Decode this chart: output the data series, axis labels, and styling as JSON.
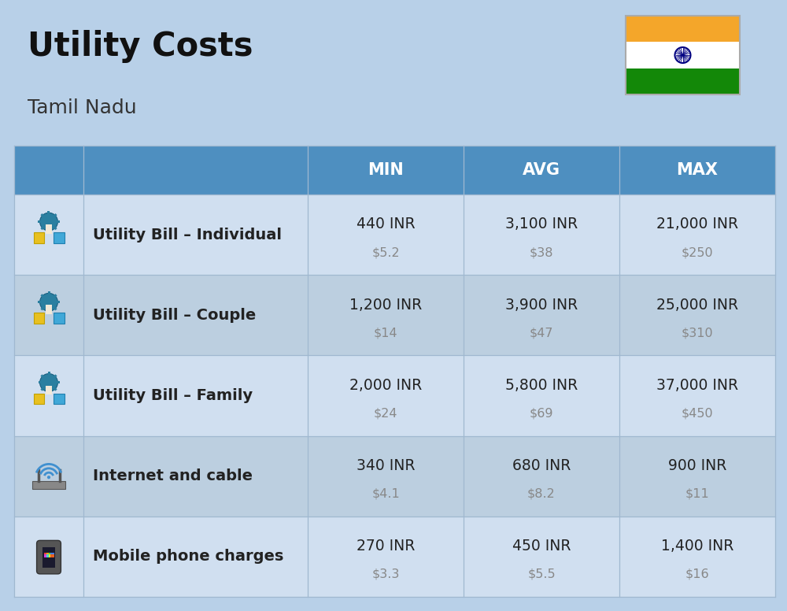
{
  "title": "Utility Costs",
  "subtitle": "Tamil Nadu",
  "background_color": "#b8d0e8",
  "header_color": "#4e8fc0",
  "header_text_color": "#ffffff",
  "row_color_even": "#d0dff0",
  "row_color_odd": "#bccfe0",
  "divider_color": "#a0b8d0",
  "title_color": "#111111",
  "subtitle_color": "#333333",
  "main_text_color": "#222222",
  "secondary_text_color": "#888888",
  "col_headers": [
    "MIN",
    "AVG",
    "MAX"
  ],
  "rows": [
    {
      "label": "Utility Bill – Individual",
      "min_inr": "440 INR",
      "min_usd": "$5.2",
      "avg_inr": "3,100 INR",
      "avg_usd": "$38",
      "max_inr": "21,000 INR",
      "max_usd": "$250",
      "icon": "utility"
    },
    {
      "label": "Utility Bill – Couple",
      "min_inr": "1,200 INR",
      "min_usd": "$14",
      "avg_inr": "3,900 INR",
      "avg_usd": "$47",
      "max_inr": "25,000 INR",
      "max_usd": "$310",
      "icon": "utility"
    },
    {
      "label": "Utility Bill – Family",
      "min_inr": "2,000 INR",
      "min_usd": "$24",
      "avg_inr": "5,800 INR",
      "avg_usd": "$69",
      "max_inr": "37,000 INR",
      "max_usd": "$450",
      "icon": "utility"
    },
    {
      "label": "Internet and cable",
      "min_inr": "340 INR",
      "min_usd": "$4.1",
      "avg_inr": "680 INR",
      "avg_usd": "$8.2",
      "max_inr": "900 INR",
      "max_usd": "$11",
      "icon": "internet"
    },
    {
      "label": "Mobile phone charges",
      "min_inr": "270 INR",
      "min_usd": "$3.3",
      "avg_inr": "450 INR",
      "avg_usd": "$5.5",
      "max_inr": "1,400 INR",
      "max_usd": "$16",
      "icon": "phone"
    }
  ],
  "flag_colors": [
    "#f4a62a",
    "#ffffff",
    "#138808"
  ],
  "flag_chakra_color": "#000080",
  "figsize": [
    10.0,
    7.76
  ],
  "dpi": 100
}
